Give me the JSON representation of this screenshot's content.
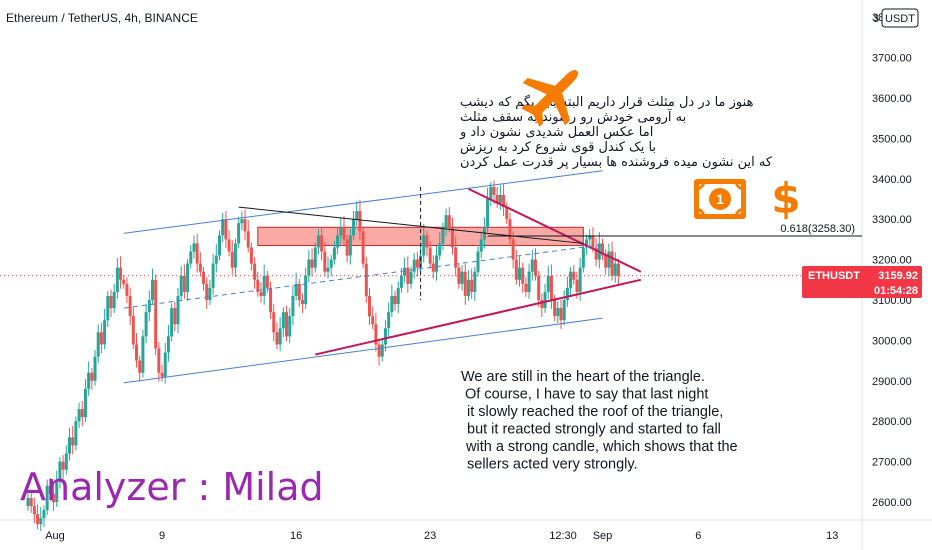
{
  "header": {
    "symbol_title": "Ethereum / TetherUS, 4h, BINANCE",
    "currency_badge": "USDT",
    "currency_prefix": "3"
  },
  "price_badge": {
    "ticker": "ETHUSDT",
    "price": "3159.92",
    "countdown": "01:54:28",
    "color": "#f23645"
  },
  "fib_label": "0.618(3258.30)",
  "notes": {
    "persian_lines": [
      "هنوز ما در دل مثلث قرار داریم البته باید بگم که دیشب",
      "به آرومی خودش رو رسوند به سقف مثلث",
      "اما عکس العمل شدیدی نشون داد و",
      "با یک کندل قوی شروع کرد به ریزش",
      "که این نشون میده فروشنده ها بسیار پر قدرت عمل کردن"
    ],
    "english_lines": [
      "We are still in the heart of the triangle.",
      "Of course, I have to say that last night",
      "it slowly reached the roof of the triangle,",
      "but it reacted strongly and started to fall",
      "with a strong candle, which shows that the",
      "sellers acted very strongly."
    ]
  },
  "author": "Analyzer : Milad",
  "icons": {
    "plane": "airplane-icon",
    "money": "banknote-icon",
    "dollar": "dollar-sign-icon"
  },
  "dollar_symbol": "$",
  "money_symbol": "1",
  "colors": {
    "bull": "#26a69a",
    "bear": "#ef5350",
    "channel": "#2962ff",
    "triangle": "#c2185b",
    "resistance_zone": "#f44336",
    "icons": "#f57c00",
    "author": "#9c27b0"
  },
  "chart_data": {
    "type": "candlestick",
    "title": "Ethereum / TetherUS, 4h, BINANCE",
    "xlabel": "",
    "ylabel": "",
    "ylim": [
      2550,
      4050
    ],
    "y_ticks": [
      "2600.00",
      "2700.00",
      "2800.00",
      "2900.00",
      "3000.00",
      "3100.00",
      "3200.00",
      "3300.00",
      "3400.00",
      "3500.00",
      "3600.00",
      "3700.00",
      "3800.00"
    ],
    "x_ticks": [
      "Aug",
      "9",
      "16",
      "23",
      "12:30",
      "Sep",
      "6",
      "13"
    ],
    "x_range": [
      "2021-08-02",
      "2021-09-17"
    ],
    "current_price": 3159.92,
    "fib_level": {
      "ratio": 0.618,
      "price": 3258.3
    },
    "resistance_zone": {
      "from": 3235,
      "to": 3280,
      "start": "2021-08-14",
      "end": "2021-08-31"
    },
    "trendlines": [
      {
        "name": "channel-upper",
        "color": "blue",
        "points": [
          [
            "2021-08-07",
            3265
          ],
          [
            "2021-09-01",
            3420
          ]
        ]
      },
      {
        "name": "channel-lower",
        "color": "blue",
        "points": [
          [
            "2021-08-07",
            2895
          ],
          [
            "2021-09-01",
            3055
          ]
        ]
      },
      {
        "name": "triangle-upper",
        "color": "magenta",
        "points": [
          [
            "2021-08-25",
            3375
          ],
          [
            "2021-09-03",
            3170
          ]
        ]
      },
      {
        "name": "triangle-lower",
        "color": "magenta",
        "points": [
          [
            "2021-08-17",
            2965
          ],
          [
            "2021-09-03",
            3150
          ]
        ]
      },
      {
        "name": "upper-trend",
        "color": "black",
        "points": [
          [
            "2021-08-13",
            3330
          ],
          [
            "2021-08-31",
            3240
          ]
        ]
      }
    ],
    "candles": {
      "interval_hours": 4,
      "start": "2021-08-02 00:00",
      "closes": [
        2610,
        2590,
        2570,
        2545,
        2560,
        2580,
        2640,
        2620,
        2600,
        2650,
        2700,
        2680,
        2720,
        2760,
        2740,
        2800,
        2830,
        2810,
        2880,
        2920,
        2900,
        2960,
        3020,
        2990,
        3050,
        3110,
        3080,
        3120,
        3180,
        3150,
        3140,
        3110,
        3060,
        2990,
        2950,
        2920,
        3010,
        3070,
        3100,
        3150,
        2980,
        2920,
        2910,
        2970,
        3010,
        3080,
        3040,
        3110,
        3160,
        3120,
        3190,
        3220,
        3240,
        3190,
        3170,
        3140,
        3100,
        3130,
        3190,
        3210,
        3260,
        3300,
        3250,
        3220,
        3180,
        3240,
        3290,
        3300,
        3270,
        3230,
        3190,
        3150,
        3120,
        3110,
        3160,
        3130,
        3070,
        3020,
        2990,
        3030,
        3070,
        3010,
        3060,
        3110,
        3140,
        3100,
        3090,
        3160,
        3200,
        3180,
        3230,
        3260,
        3220,
        3170,
        3180,
        3200,
        3230,
        3260,
        3280,
        3250,
        3210,
        3260,
        3300,
        3320,
        3270,
        3190,
        3110,
        3060,
        3040,
        2990,
        2960,
        2990,
        3030,
        3070,
        3110,
        3090,
        3130,
        3160,
        3180,
        3140,
        3170,
        3200,
        3180,
        3210,
        3260,
        3230,
        3190,
        3170,
        3210,
        3240,
        3280,
        3310,
        3280,
        3230,
        3180,
        3140,
        3170,
        3110,
        3150,
        3120,
        3170,
        3220,
        3250,
        3280,
        3350,
        3380,
        3360,
        3340,
        3360,
        3330,
        3300,
        3250,
        3200,
        3150,
        3180,
        3140,
        3120,
        3170,
        3200,
        3160,
        3100,
        3080,
        3120,
        3160,
        3100,
        3060,
        3080,
        3050,
        3100,
        3130,
        3170,
        3150,
        3120,
        3180,
        3230,
        3250,
        3260,
        3230,
        3200,
        3240,
        3210,
        3180,
        3220,
        3160,
        3190,
        3159.92
      ]
    }
  }
}
